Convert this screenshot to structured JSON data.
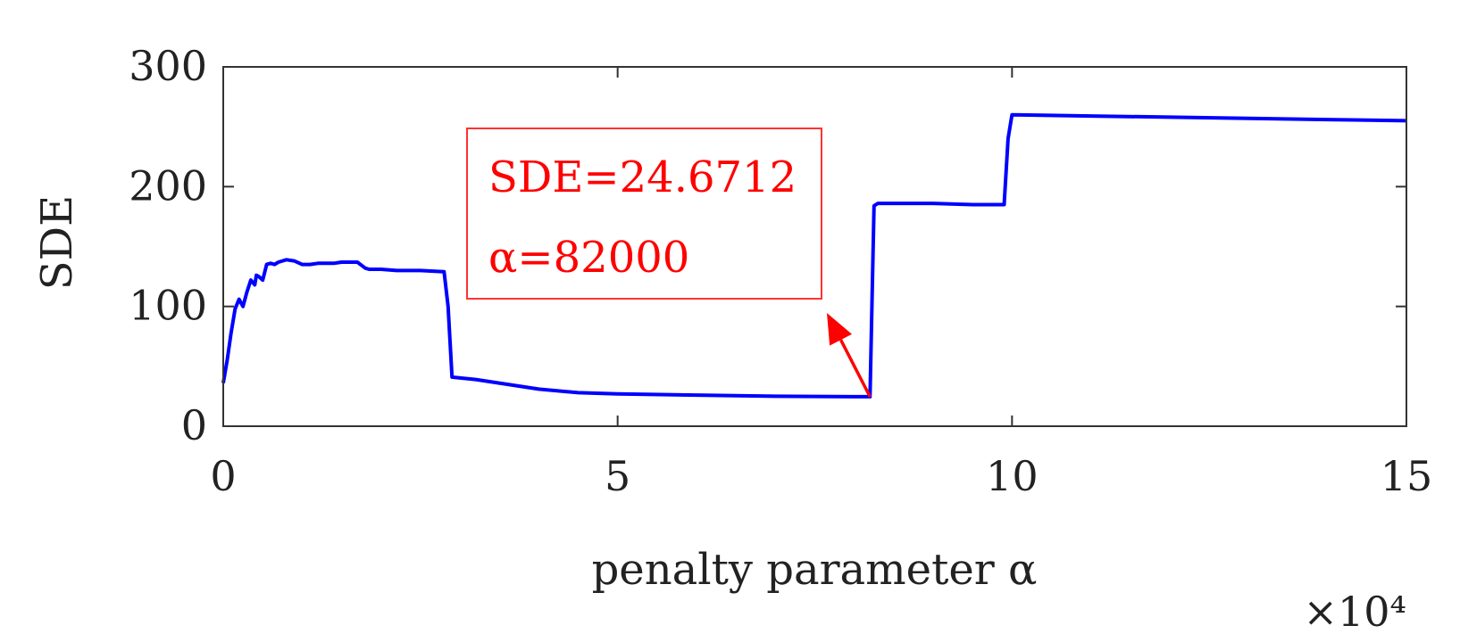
{
  "chart_data": {
    "type": "line",
    "xlabel": "penalty parameter α",
    "ylabel": "SDE",
    "x_multiplier_label": "×10⁴",
    "xlim": [
      0,
      15
    ],
    "ylim": [
      0,
      300
    ],
    "xticks": [
      0,
      5,
      10,
      15
    ],
    "xtick_labels": [
      "0",
      "5",
      "10",
      "15"
    ],
    "yticks": [
      0,
      100,
      200,
      300
    ],
    "ytick_labels": [
      "0",
      "100",
      "200",
      "300"
    ],
    "grid": false,
    "legend": "none",
    "series": [
      {
        "color": "#0000ff",
        "x": [
          0.0,
          0.05,
          0.1,
          0.15,
          0.2,
          0.25,
          0.3,
          0.35,
          0.4,
          0.42,
          0.45,
          0.5,
          0.55,
          0.6,
          0.65,
          0.7,
          0.75,
          0.8,
          0.9,
          1.0,
          1.1,
          1.2,
          1.3,
          1.4,
          1.5,
          1.6,
          1.7,
          1.8,
          1.85,
          2.0,
          2.2,
          2.5,
          2.8,
          2.85,
          2.9,
          3.2,
          3.6,
          4.0,
          4.5,
          5.0,
          6.0,
          7.0,
          8.0,
          8.2,
          8.25,
          8.3,
          9.0,
          9.5,
          9.9,
          9.95,
          10.0,
          11.0,
          12.0,
          13.0,
          14.0,
          15.0
        ],
        "y": [
          36,
          55,
          78,
          98,
          106,
          100,
          112,
          122,
          118,
          126,
          125,
          122,
          135,
          136,
          135,
          137,
          138,
          139,
          138,
          135,
          135,
          136,
          136,
          136,
          137,
          137,
          137,
          132,
          131,
          131,
          130,
          130,
          129,
          100,
          41,
          39,
          35,
          31,
          28,
          27,
          26,
          25,
          24.67,
          24.67,
          184,
          186,
          186,
          185,
          185,
          240,
          260,
          259,
          258,
          257,
          256,
          255
        ]
      }
    ],
    "annotations": [
      {
        "lines": [
          "SDE=24.6712",
          "α=82000"
        ],
        "color": "#ff0000",
        "point": [
          8.2,
          24.67
        ]
      }
    ]
  }
}
